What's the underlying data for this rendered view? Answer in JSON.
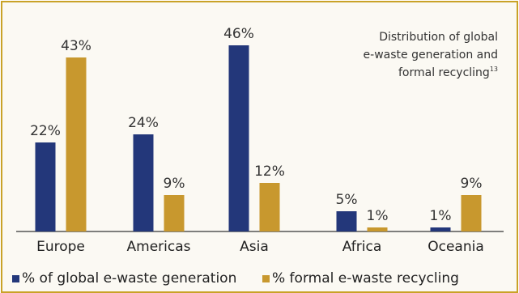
{
  "chart_data": {
    "type": "bar",
    "title_lines": [
      "Distribution of global",
      "e-waste generation and",
      "formal recycling"
    ],
    "title_footnote": "13",
    "categories": [
      "Europe",
      "Americas",
      "Asia",
      "Africa",
      "Oceania"
    ],
    "series": [
      {
        "name": "% of global e-waste generation",
        "values": [
          22,
          24,
          46,
          5,
          1
        ],
        "labels": [
          "22%",
          "24%",
          "46%",
          "5%",
          "1%"
        ],
        "color": "#23377a"
      },
      {
        "name": "% formal e-waste recycling",
        "values": [
          43,
          9,
          12,
          1,
          9
        ],
        "labels": [
          "43%",
          "9%",
          "12%",
          "1%",
          "9%"
        ],
        "color": "#c8982e"
      }
    ],
    "ylim": [
      0,
      50
    ],
    "grid": false,
    "legend_position": "bottom",
    "accent_color": "#c9a227"
  }
}
